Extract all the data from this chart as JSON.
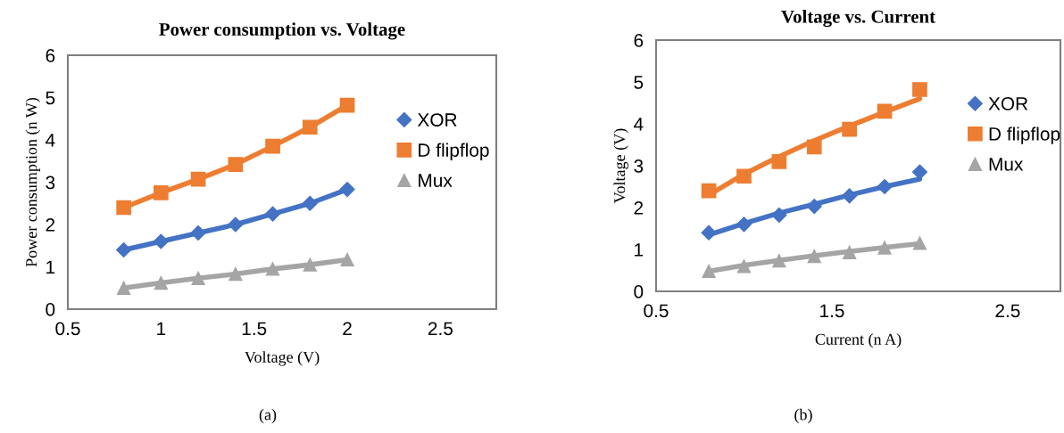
{
  "chart_data": [
    {
      "type": "line",
      "title": "Power consumption vs. Voltage",
      "xlabel": "Voltage (V)",
      "ylabel": "Power consumption (n W)",
      "x": [
        0.8,
        1.0,
        1.2,
        1.4,
        1.6,
        1.8,
        2.0
      ],
      "xlim": [
        0.5,
        2.8
      ],
      "xticks": [
        0.5,
        1,
        1.5,
        2,
        2.5
      ],
      "ylim": [
        0,
        6
      ],
      "yticks": [
        0,
        1,
        2,
        3,
        4,
        5,
        6
      ],
      "legend": "right",
      "grid": false,
      "annotations": [
        "(a)"
      ],
      "series": [
        {
          "name": "XOR",
          "color": "#4472c4",
          "marker": "diamond",
          "values": [
            1.4,
            1.6,
            1.8,
            2.0,
            2.25,
            2.5,
            2.83
          ]
        },
        {
          "name": "D flipflop",
          "color": "#ed7d31",
          "marker": "square",
          "values": [
            2.4,
            2.75,
            3.07,
            3.42,
            3.85,
            4.3,
            4.82
          ]
        },
        {
          "name": "Mux",
          "color": "#a5a5a5",
          "marker": "triangle",
          "values": [
            0.5,
            0.62,
            0.73,
            0.83,
            0.95,
            1.05,
            1.17
          ]
        }
      ]
    },
    {
      "type": "scatter",
      "title": "Voltage vs. Current",
      "xlabel": "Current (n A)",
      "ylabel": "Voltage (V)",
      "x": [
        0.8,
        1.0,
        1.2,
        1.4,
        1.6,
        1.8,
        2.0
      ],
      "xlim": [
        0.5,
        2.8
      ],
      "xticks": [
        0.5,
        1.5,
        2.5
      ],
      "ylim": [
        0,
        6
      ],
      "yticks": [
        0,
        1,
        2,
        3,
        4,
        5,
        6
      ],
      "legend": "right",
      "grid": false,
      "annotations": [
        "(b)"
      ],
      "series": [
        {
          "type": "line",
          "color": "#ed7d31",
          "marker": "none",
          "values": [
            2.3,
            2.8,
            3.22,
            3.6,
            3.95,
            4.28,
            4.6
          ]
        },
        {
          "type": "line",
          "color": "#4472c4",
          "marker": "none",
          "values": [
            1.35,
            1.62,
            1.87,
            2.08,
            2.3,
            2.5,
            2.68
          ]
        },
        {
          "type": "line",
          "color": "#a5a5a5",
          "marker": "none",
          "values": [
            0.48,
            0.62,
            0.74,
            0.85,
            0.95,
            1.05,
            1.14
          ]
        },
        {
          "name": "XOR",
          "color": "#4472c4",
          "marker": "diamond",
          "values": [
            1.4,
            1.6,
            1.82,
            2.03,
            2.28,
            2.5,
            2.85
          ]
        },
        {
          "name": "D flipflop",
          "color": "#ed7d31",
          "marker": "square",
          "values": [
            2.4,
            2.75,
            3.1,
            3.45,
            3.87,
            4.3,
            4.82
          ]
        },
        {
          "name": "Mux",
          "color": "#a5a5a5",
          "marker": "triangle",
          "values": [
            0.48,
            0.6,
            0.73,
            0.84,
            0.93,
            1.04,
            1.15
          ]
        }
      ]
    }
  ]
}
